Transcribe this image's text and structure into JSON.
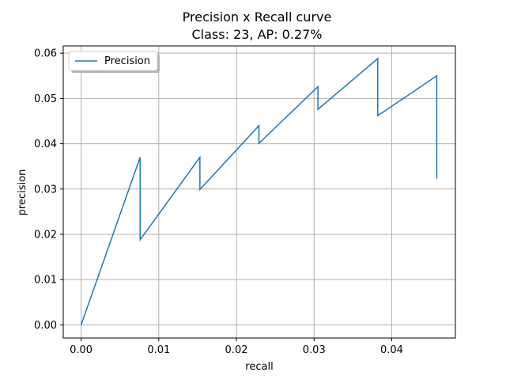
{
  "chart_data": {
    "type": "line",
    "title": "Precision x Recall curve",
    "subtitle": "Class: 23, AP: 0.27%",
    "xlabel": "recall",
    "ylabel": "precision",
    "xlim": [
      -0.0023,
      0.0482
    ],
    "ylim": [
      -0.0029,
      0.0616
    ],
    "xticks": [
      0.0,
      0.01,
      0.02,
      0.03,
      0.04
    ],
    "xtick_labels": [
      "0.00",
      "0.01",
      "0.02",
      "0.03",
      "0.04"
    ],
    "yticks": [
      0.0,
      0.01,
      0.02,
      0.03,
      0.04,
      0.05,
      0.06
    ],
    "ytick_labels": [
      "0.00",
      "0.01",
      "0.02",
      "0.03",
      "0.04",
      "0.05",
      "0.06"
    ],
    "grid": true,
    "legend_position": "top-left",
    "series": [
      {
        "name": "Precision",
        "color": "#1f77b4",
        "x": [
          0.0,
          0.0076,
          0.0076,
          0.0153,
          0.0153,
          0.0229,
          0.0229,
          0.0305,
          0.0305,
          0.0382,
          0.0382,
          0.0458,
          0.0458
        ],
        "y": [
          0.0,
          0.037,
          0.0188,
          0.037,
          0.0299,
          0.044,
          0.0401,
          0.0526,
          0.0476,
          0.0588,
          0.0462,
          0.055,
          0.0323
        ]
      }
    ]
  }
}
